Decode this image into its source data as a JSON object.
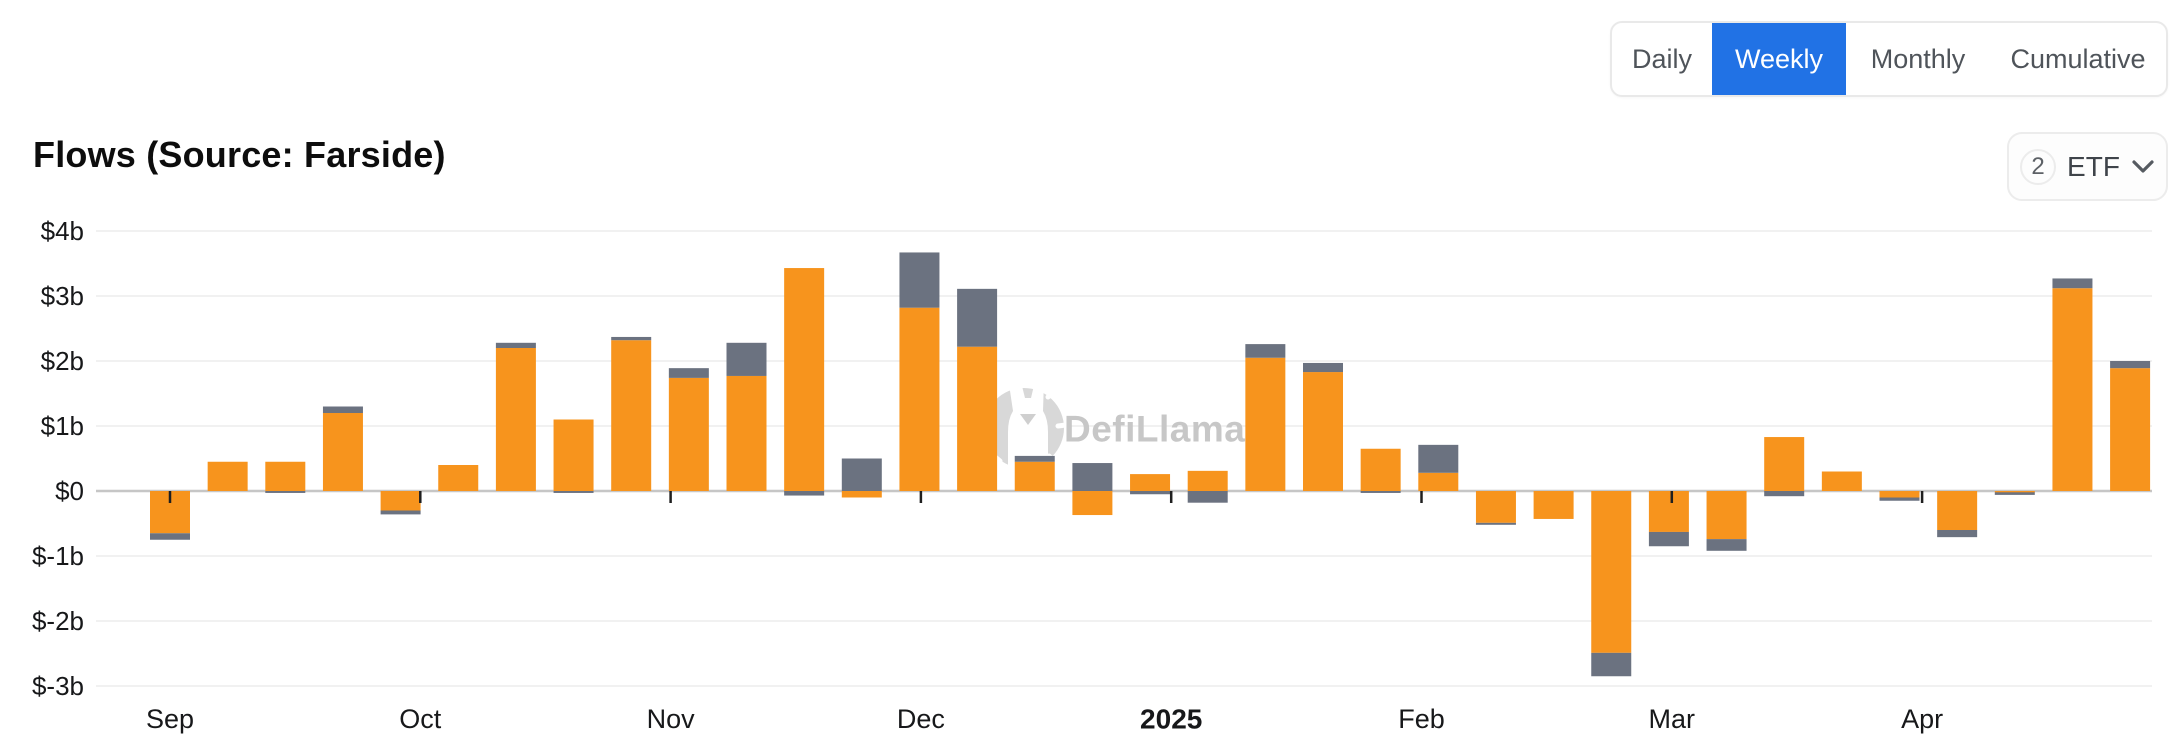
{
  "header": {
    "title": "Flows (Source: Farside)",
    "tabs": [
      {
        "label": "Daily",
        "selected": false
      },
      {
        "label": "Weekly",
        "selected": true
      },
      {
        "label": "Monthly",
        "selected": false
      },
      {
        "label": "Cumulative",
        "selected": false
      }
    ],
    "etf_selector": {
      "count": "2",
      "label": "ETF",
      "icon": "chevron-down-icon"
    }
  },
  "watermark": {
    "text": "DefiLlama",
    "icon": "defillama-llama-logo"
  },
  "colors": {
    "selected_tab_bg": "#2172e5",
    "selected_tab_text": "#ffffff",
    "orange_series": "#f7941d",
    "gray_series": "#6b7280",
    "zero_line": "#c6c6c6",
    "gridline": "#f1f1f1",
    "axis_text": "#17181a",
    "watermark_gray": "#d8d8d8"
  },
  "chart_data": {
    "type": "bar",
    "stacked": true,
    "title": "Flows (Source: Farside)",
    "unit": "USD billions",
    "xlabel": "",
    "ylabel": "",
    "ylim": [
      -3.3,
      4.3
    ],
    "grid": true,
    "legend_visible": false,
    "y_ticks": [
      {
        "label": "$4b",
        "value": 4
      },
      {
        "label": "$3b",
        "value": 3
      },
      {
        "label": "$2b",
        "value": 2
      },
      {
        "label": "$1b",
        "value": 1
      },
      {
        "label": "$0",
        "value": 0
      },
      {
        "label": "$-1b",
        "value": -1
      },
      {
        "label": "$-2b",
        "value": -2
      },
      {
        "label": "$-3b",
        "value": -3
      }
    ],
    "x_axis_labels": [
      {
        "label": "Sep",
        "bold": false
      },
      {
        "label": "Oct",
        "bold": false
      },
      {
        "label": "Nov",
        "bold": false
      },
      {
        "label": "Dec",
        "bold": false
      },
      {
        "label": "2025",
        "bold": true
      },
      {
        "label": "Feb",
        "bold": false
      },
      {
        "label": "Mar",
        "bold": false
      },
      {
        "label": "Apr",
        "bold": false
      }
    ],
    "series": [
      {
        "name": "orange",
        "color": "#f7941d",
        "values": [
          -0.65,
          0.45,
          0.45,
          1.2,
          -0.3,
          0.4,
          2.2,
          1.1,
          2.32,
          1.74,
          1.77,
          3.43,
          -0.1,
          2.82,
          2.22,
          0.45,
          -0.37,
          0.26,
          0.31,
          2.05,
          1.83,
          0.65,
          0.28,
          -0.49,
          -0.43,
          -2.49,
          -0.63,
          -0.74,
          0.83,
          0.3,
          -0.1,
          -0.6,
          -0.02,
          3.12,
          1.89
        ]
      },
      {
        "name": "gray",
        "color": "#6b7280",
        "values": [
          -0.1,
          0,
          -0.03,
          0.1,
          -0.06,
          0,
          0.08,
          -0.03,
          0.05,
          0.15,
          0.51,
          -0.07,
          0.5,
          0.85,
          0.89,
          0.09,
          0.43,
          -0.05,
          -0.18,
          0.21,
          0.14,
          -0.03,
          0.43,
          -0.03,
          0,
          -0.36,
          -0.22,
          -0.18,
          -0.08,
          0,
          -0.05,
          -0.11,
          -0.04,
          0.15,
          0.11
        ]
      }
    ]
  }
}
